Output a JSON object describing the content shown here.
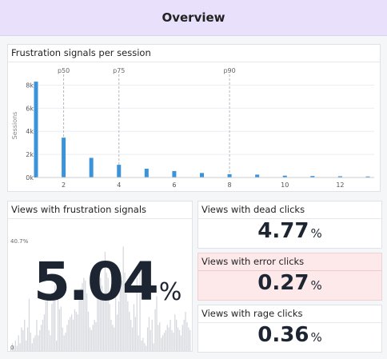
{
  "header": {
    "title": "Overview"
  },
  "distribution": {
    "title": "Frustration signals per session",
    "chart_data": {
      "type": "bar",
      "title": "",
      "xlabel": "",
      "ylabel": "Sessions",
      "x": [
        1,
        2,
        3,
        4,
        5,
        6,
        7,
        8,
        9,
        10,
        11,
        12,
        13
      ],
      "values": [
        8300,
        3450,
        1700,
        1100,
        760,
        560,
        390,
        290,
        250,
        160,
        130,
        110,
        90
      ],
      "ylim": [
        0,
        9000
      ],
      "yticks": [
        0,
        2000,
        4000,
        6000,
        8000
      ],
      "ytick_labels": [
        "0k",
        "2k",
        "4k",
        "6k",
        "8k"
      ],
      "xticks": [
        2,
        4,
        6,
        8,
        10,
        12
      ],
      "xtick_labels": [
        "2",
        "4",
        "6",
        "8",
        "10",
        "12"
      ],
      "markers": [
        {
          "label": "p50",
          "x": 2
        },
        {
          "label": "p75",
          "x": 4
        },
        {
          "label": "p90",
          "x": 8
        }
      ],
      "bar_color": "#3b93d9",
      "grid": true
    }
  },
  "views": {
    "title": "Views with frustration signals",
    "value": "5.04",
    "unit": "%",
    "chart_data": {
      "type": "bar",
      "ylim": [
        0,
        40.7
      ],
      "max_label": "40.7%",
      "min_label": "0",
      "values": [
        1,
        3,
        2,
        4,
        2,
        6,
        3,
        9,
        8,
        12,
        4,
        9,
        20,
        7,
        3,
        5,
        6,
        12,
        6,
        8,
        10,
        12,
        14,
        19,
        22,
        8,
        6,
        18,
        21,
        25,
        4,
        24,
        16,
        17,
        9,
        6,
        7,
        10,
        12,
        13,
        14,
        12,
        16,
        15,
        14,
        22,
        24,
        26,
        28,
        27,
        22,
        15,
        9,
        8,
        10,
        12,
        11,
        24,
        30,
        28,
        25,
        20,
        38,
        30,
        28,
        18,
        12,
        10,
        9,
        33,
        14,
        19,
        25,
        27,
        40,
        30,
        22,
        19,
        15,
        12,
        9,
        18,
        13,
        28,
        6,
        32,
        4,
        5,
        3,
        2,
        9,
        13,
        8,
        12,
        3,
        16,
        21,
        10,
        11,
        5,
        6,
        7,
        8,
        10,
        9,
        12,
        8,
        7,
        14,
        12,
        9,
        8,
        6,
        10,
        12,
        15,
        11,
        9,
        8
      ],
      "bar_color": "#d7d9de"
    }
  },
  "dead_clicks": {
    "title": "Views with dead clicks",
    "value": "4.77",
    "unit": "%"
  },
  "error_clicks": {
    "title": "Views with error clicks",
    "value": "0.27",
    "unit": "%"
  },
  "rage_clicks": {
    "title": "Views with rage clicks",
    "value": "0.36",
    "unit": "%"
  }
}
